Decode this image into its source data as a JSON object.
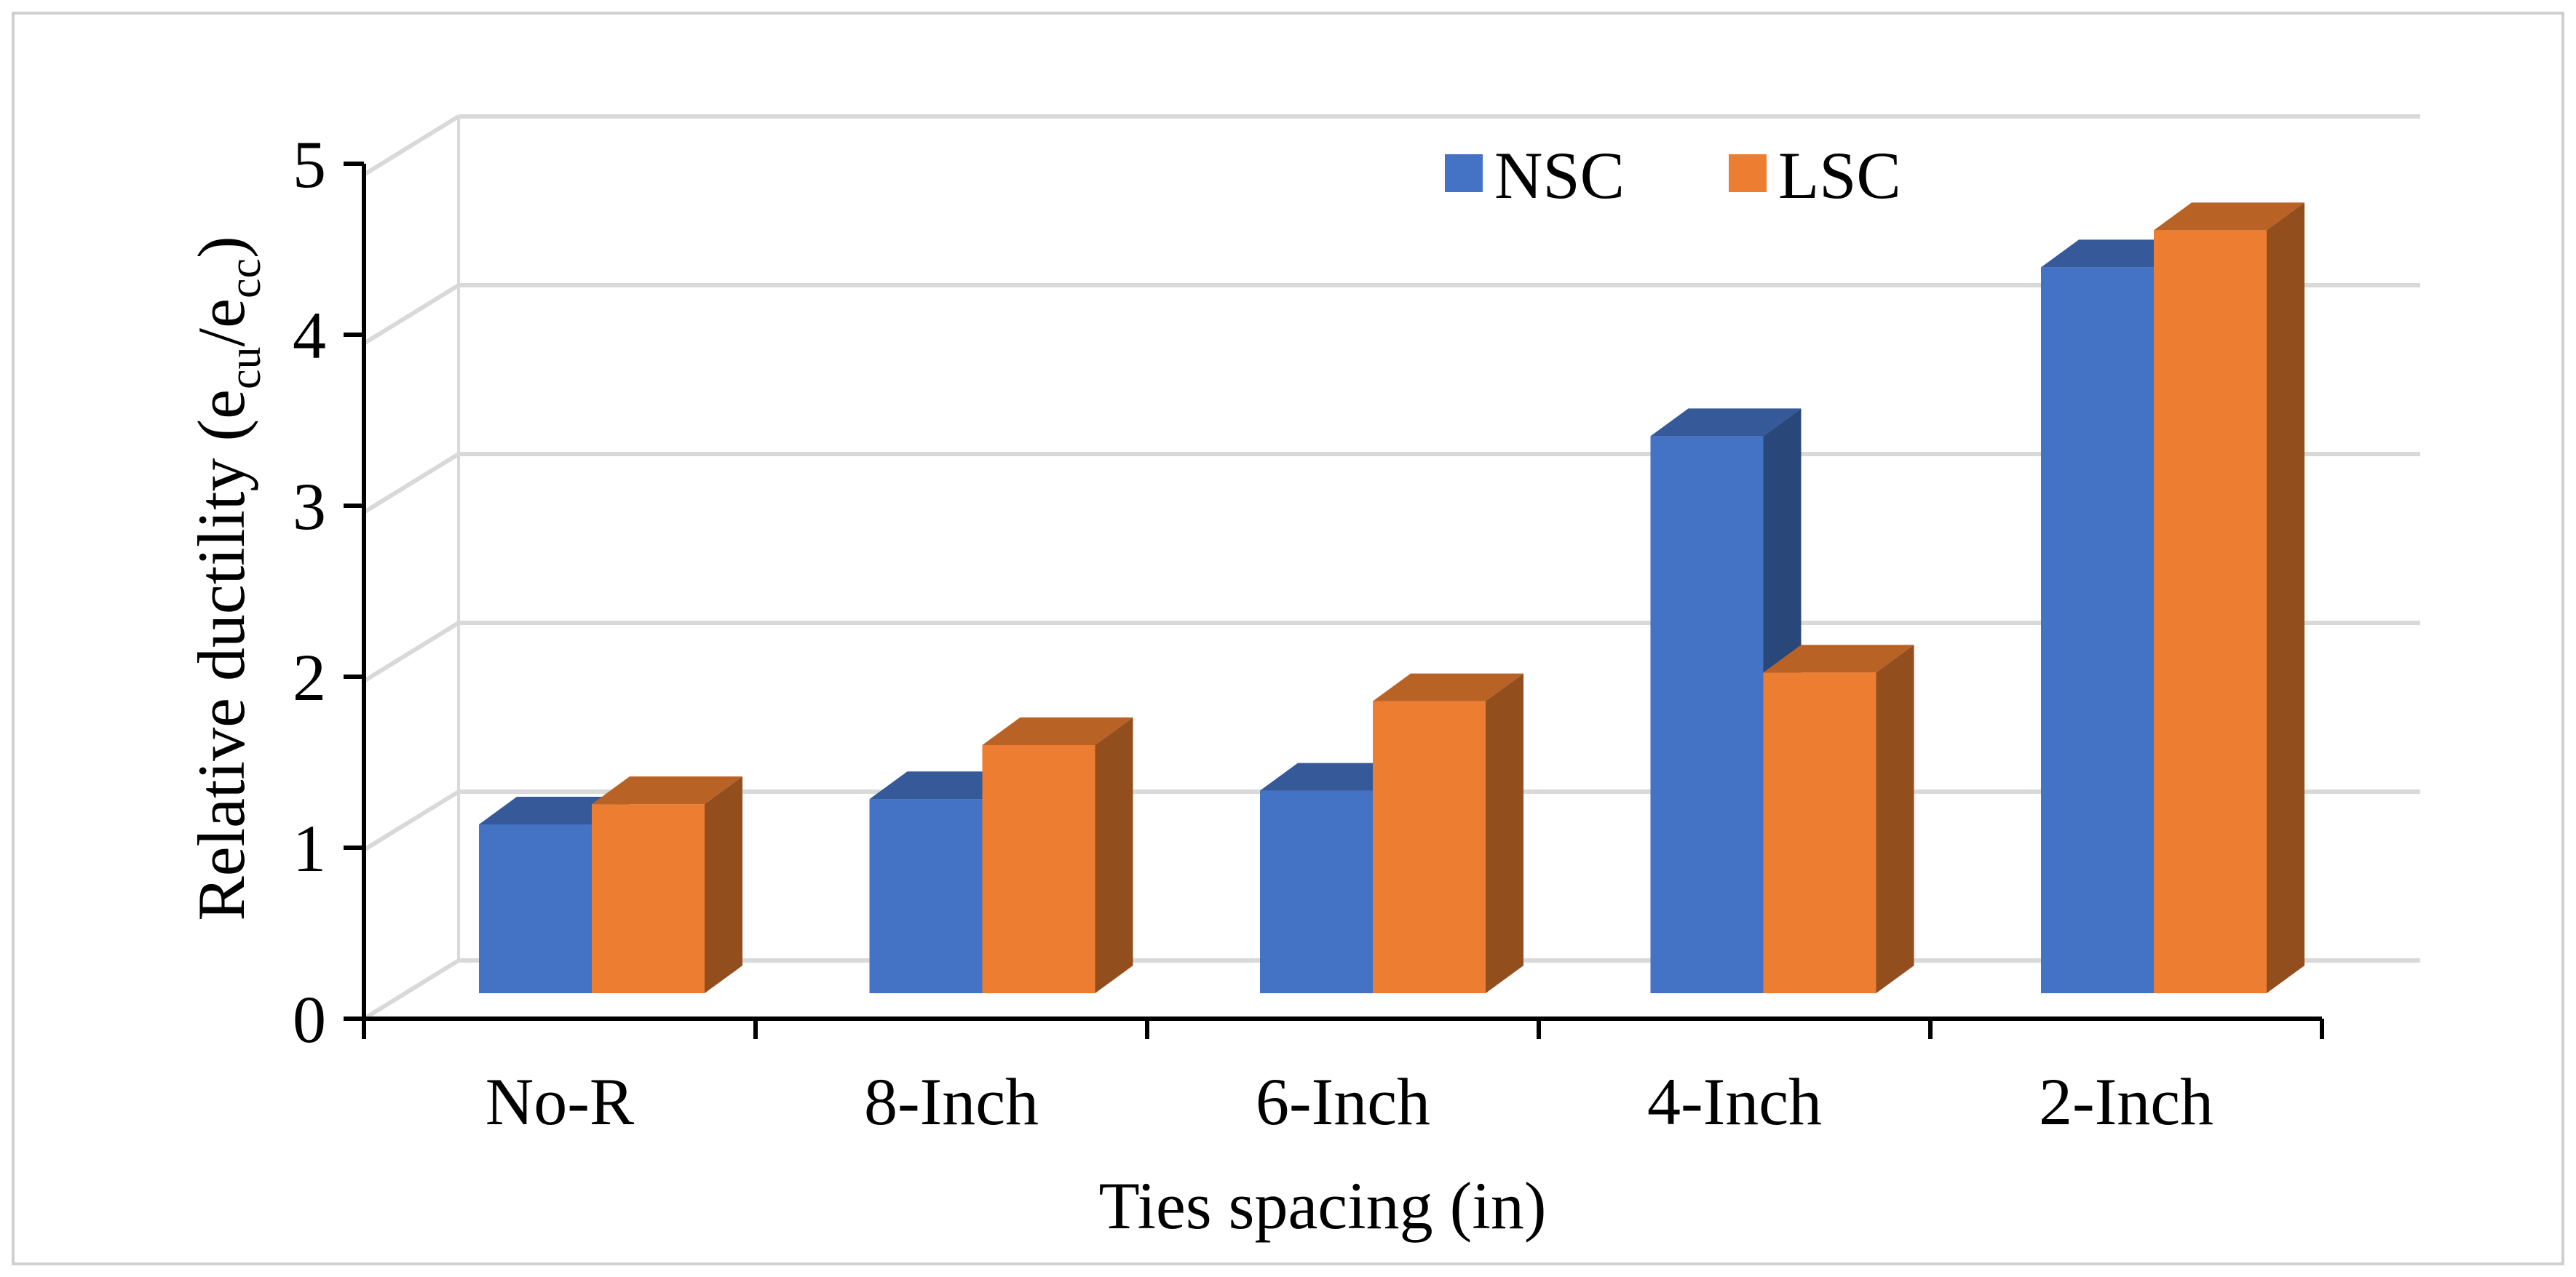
{
  "chart_data": {
    "type": "bar",
    "style": "3d-clustered-column",
    "categories": [
      "No-R",
      "8-Inch",
      "6-Inch",
      "4-Inch",
      "2-Inch"
    ],
    "series": [
      {
        "name": "NSC",
        "values": [
          1.0,
          1.15,
          1.2,
          3.3,
          4.3
        ],
        "color": "#4472C4"
      },
      {
        "name": "LSC",
        "values": [
          1.12,
          1.47,
          1.73,
          1.9,
          4.52
        ],
        "color": "#ED7D31"
      }
    ],
    "xlabel": "Ties spacing (in)",
    "ylabel": {
      "text": "Relative ductility   (e",
      "sub1": "cu",
      "mid": "/e",
      "sub2": "cc",
      "end": ")"
    },
    "ylim": [
      0,
      5
    ],
    "yticks": [
      "0",
      "1",
      "2",
      "3",
      "4",
      "5"
    ],
    "grid": true,
    "legend_position": "top-right"
  }
}
